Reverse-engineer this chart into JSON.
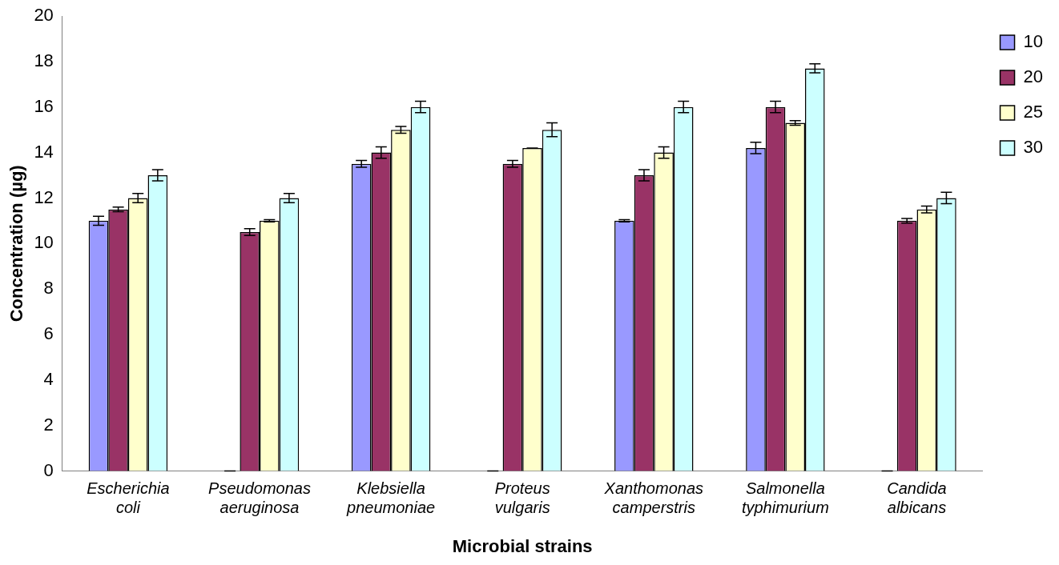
{
  "chart_data": {
    "type": "bar",
    "xlabel": "Microbial strains",
    "ylabel": "Concentration (µg)",
    "categories": [
      "Escherichia coli",
      "Pseudomonas aeruginosa",
      "Klebsiella pneumoniae",
      "Proteus vulgaris",
      "Xanthomonas camperstris",
      "Salmonella typhimurium",
      "Candida albicans"
    ],
    "series": [
      {
        "name": "10",
        "color": "#9999ff",
        "values": [
          11,
          0,
          13.5,
          0,
          11,
          14.2,
          0
        ],
        "errors": [
          0.2,
          0,
          0.15,
          0,
          0.05,
          0.25,
          0
        ]
      },
      {
        "name": "20",
        "color": "#993366",
        "values": [
          11.5,
          10.5,
          14,
          13.5,
          13,
          16,
          11
        ],
        "errors": [
          0.1,
          0.15,
          0.25,
          0.15,
          0.25,
          0.25,
          0.1
        ]
      },
      {
        "name": "25",
        "color": "#ffffcc",
        "values": [
          12,
          11,
          15,
          14.2,
          14,
          15.3,
          11.5
        ],
        "errors": [
          0.2,
          0.05,
          0.15,
          0,
          0.25,
          0.1,
          0.15
        ]
      },
      {
        "name": "30",
        "color": "#ccffff",
        "values": [
          13,
          12,
          16,
          15,
          16,
          17.7,
          12
        ],
        "errors": [
          0.25,
          0.2,
          0.25,
          0.3,
          0.25,
          0.2,
          0.25
        ]
      }
    ],
    "ylim": [
      0,
      20
    ],
    "yticks": [
      0,
      2,
      4,
      6,
      8,
      10,
      12,
      14,
      16,
      18,
      20
    ],
    "grid": false,
    "legend": "top right"
  }
}
